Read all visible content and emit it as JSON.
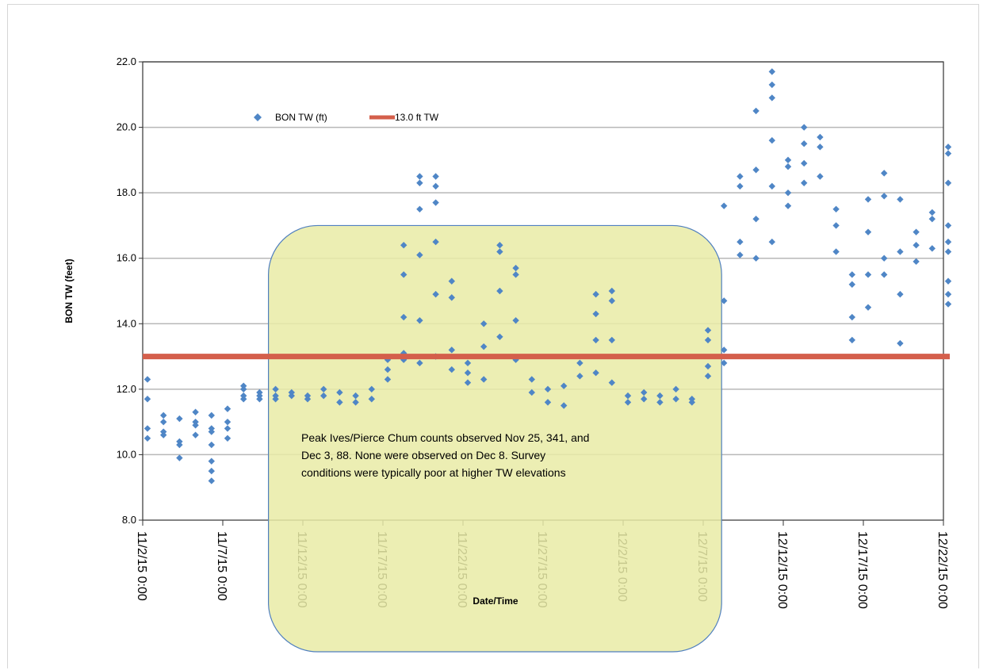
{
  "chart_data": {
    "type": "scatter",
    "title": "",
    "ylabel": "BON TW (feet)",
    "xlabel": "Date/Time",
    "ylim": [
      8,
      22
    ],
    "yticks": [
      8,
      10,
      12,
      14,
      16,
      18,
      20,
      22
    ],
    "ytick_labels": [
      "8.0",
      "10.0",
      "12.0",
      "14.0",
      "16.0",
      "18.0",
      "20.0",
      "22.0"
    ],
    "xlim": [
      "2015-11-02",
      "2015-12-22"
    ],
    "xticks": [
      "2015-11-02",
      "2015-11-07",
      "2015-11-12",
      "2015-11-17",
      "2015-11-22",
      "2015-11-27",
      "2015-12-02",
      "2015-12-07",
      "2015-12-12",
      "2015-12-17",
      "2015-12-22"
    ],
    "xtick_labels": [
      "11/2/15 0:00",
      "11/7/15 0:00",
      "11/12/15 0:00",
      "11/17/15 0:00",
      "11/22/15 0:00",
      "11/27/15 0:00",
      "12/2/15 0:00",
      "12/7/15 0:00",
      "12/12/15 0:00",
      "12/17/15 0:00",
      "12/22/15 0:00"
    ],
    "grid": true,
    "legend_placement": "top-left",
    "series": [
      {
        "name": "BON TW (ft)",
        "type": "scatter",
        "color": "#4f86c6",
        "marker": "diamond",
        "points": [
          [
            "2015-11-02",
            12.3
          ],
          [
            "2015-11-02",
            11.7
          ],
          [
            "2015-11-02",
            10.8
          ],
          [
            "2015-11-02",
            10.5
          ],
          [
            "2015-11-03",
            11.2
          ],
          [
            "2015-11-03",
            10.7
          ],
          [
            "2015-11-03",
            11.0
          ],
          [
            "2015-11-03",
            10.6
          ],
          [
            "2015-11-04",
            11.1
          ],
          [
            "2015-11-04",
            10.3
          ],
          [
            "2015-11-04",
            9.9
          ],
          [
            "2015-11-04",
            10.4
          ],
          [
            "2015-11-05",
            11.0
          ],
          [
            "2015-11-05",
            10.6
          ],
          [
            "2015-11-05",
            11.3
          ],
          [
            "2015-11-05",
            10.9
          ],
          [
            "2015-11-06",
            11.2
          ],
          [
            "2015-11-06",
            10.8
          ],
          [
            "2015-11-06",
            10.3
          ],
          [
            "2015-11-06",
            10.7
          ],
          [
            "2015-11-06",
            9.5
          ],
          [
            "2015-11-06",
            9.2
          ],
          [
            "2015-11-06",
            9.8
          ],
          [
            "2015-11-07",
            10.5
          ],
          [
            "2015-11-07",
            10.8
          ],
          [
            "2015-11-07",
            11.0
          ],
          [
            "2015-11-07",
            11.4
          ],
          [
            "2015-11-08",
            11.7
          ],
          [
            "2015-11-08",
            12.0
          ],
          [
            "2015-11-08",
            11.8
          ],
          [
            "2015-11-08",
            12.1
          ],
          [
            "2015-11-09",
            11.8
          ],
          [
            "2015-11-09",
            11.7
          ],
          [
            "2015-11-09",
            11.9
          ],
          [
            "2015-11-10",
            11.8
          ],
          [
            "2015-11-10",
            11.7
          ],
          [
            "2015-11-10",
            12.0
          ],
          [
            "2015-11-11",
            11.8
          ],
          [
            "2015-11-11",
            11.9
          ],
          [
            "2015-11-12",
            11.8
          ],
          [
            "2015-11-12",
            11.7
          ],
          [
            "2015-11-13",
            12.0
          ],
          [
            "2015-11-13",
            11.8
          ],
          [
            "2015-11-14",
            11.6
          ],
          [
            "2015-11-14",
            11.9
          ],
          [
            "2015-11-15",
            11.6
          ],
          [
            "2015-11-15",
            11.8
          ],
          [
            "2015-11-16",
            11.7
          ],
          [
            "2015-11-16",
            12.0
          ],
          [
            "2015-11-17",
            12.3
          ],
          [
            "2015-11-17",
            12.6
          ],
          [
            "2015-11-17",
            12.9
          ],
          [
            "2015-11-18",
            13.1
          ],
          [
            "2015-11-18",
            15.5
          ],
          [
            "2015-11-18",
            16.4
          ],
          [
            "2015-11-18",
            14.2
          ],
          [
            "2015-11-18",
            12.9
          ],
          [
            "2015-11-19",
            18.5
          ],
          [
            "2015-11-19",
            18.3
          ],
          [
            "2015-11-19",
            17.5
          ],
          [
            "2015-11-19",
            16.1
          ],
          [
            "2015-11-19",
            14.1
          ],
          [
            "2015-11-19",
            12.8
          ],
          [
            "2015-11-20",
            18.5
          ],
          [
            "2015-11-20",
            18.2
          ],
          [
            "2015-11-20",
            17.7
          ],
          [
            "2015-11-20",
            16.5
          ],
          [
            "2015-11-20",
            14.9
          ],
          [
            "2015-11-20",
            13.0
          ],
          [
            "2015-11-21",
            15.3
          ],
          [
            "2015-11-21",
            14.8
          ],
          [
            "2015-11-21",
            13.2
          ],
          [
            "2015-11-21",
            12.6
          ],
          [
            "2015-11-22",
            12.5
          ],
          [
            "2015-11-22",
            12.2
          ],
          [
            "2015-11-22",
            12.8
          ],
          [
            "2015-11-23",
            12.3
          ],
          [
            "2015-11-23",
            13.3
          ],
          [
            "2015-11-23",
            14.0
          ],
          [
            "2015-11-24",
            16.4
          ],
          [
            "2015-11-24",
            16.2
          ],
          [
            "2015-11-24",
            15.0
          ],
          [
            "2015-11-24",
            13.6
          ],
          [
            "2015-11-25",
            15.7
          ],
          [
            "2015-11-25",
            15.5
          ],
          [
            "2015-11-25",
            14.1
          ],
          [
            "2015-11-25",
            12.9
          ],
          [
            "2015-11-26",
            12.3
          ],
          [
            "2015-11-26",
            11.9
          ],
          [
            "2015-11-27",
            11.6
          ],
          [
            "2015-11-27",
            12.0
          ],
          [
            "2015-11-28",
            11.5
          ],
          [
            "2015-11-28",
            12.1
          ],
          [
            "2015-11-29",
            12.4
          ],
          [
            "2015-11-29",
            12.8
          ],
          [
            "2015-11-30",
            14.9
          ],
          [
            "2015-11-30",
            14.3
          ],
          [
            "2015-11-30",
            13.5
          ],
          [
            "2015-11-30",
            12.5
          ],
          [
            "2015-12-01",
            15.0
          ],
          [
            "2015-12-01",
            14.7
          ],
          [
            "2015-12-01",
            13.5
          ],
          [
            "2015-12-01",
            12.2
          ],
          [
            "2015-12-02",
            11.8
          ],
          [
            "2015-12-02",
            11.6
          ],
          [
            "2015-12-03",
            11.7
          ],
          [
            "2015-12-03",
            11.9
          ],
          [
            "2015-12-04",
            11.6
          ],
          [
            "2015-12-04",
            11.8
          ],
          [
            "2015-12-05",
            11.7
          ],
          [
            "2015-12-05",
            12.0
          ],
          [
            "2015-12-06",
            11.7
          ],
          [
            "2015-12-06",
            11.6
          ],
          [
            "2015-12-07",
            12.4
          ],
          [
            "2015-12-07",
            13.5
          ],
          [
            "2015-12-07",
            13.8
          ],
          [
            "2015-12-07",
            12.7
          ],
          [
            "2015-12-08",
            13.2
          ],
          [
            "2015-12-08",
            12.8
          ],
          [
            "2015-12-08",
            14.7
          ],
          [
            "2015-12-08",
            17.6
          ],
          [
            "2015-12-09",
            18.5
          ],
          [
            "2015-12-09",
            18.2
          ],
          [
            "2015-12-09",
            16.5
          ],
          [
            "2015-12-09",
            16.1
          ],
          [
            "2015-12-10",
            18.7
          ],
          [
            "2015-12-10",
            20.5
          ],
          [
            "2015-12-10",
            17.2
          ],
          [
            "2015-12-10",
            16.0
          ],
          [
            "2015-12-11",
            21.7
          ],
          [
            "2015-12-11",
            21.3
          ],
          [
            "2015-12-11",
            20.9
          ],
          [
            "2015-12-11",
            19.6
          ],
          [
            "2015-12-11",
            18.2
          ],
          [
            "2015-12-11",
            16.5
          ],
          [
            "2015-12-12",
            19.0
          ],
          [
            "2015-12-12",
            18.8
          ],
          [
            "2015-12-12",
            18.0
          ],
          [
            "2015-12-12",
            17.6
          ],
          [
            "2015-12-13",
            20.0
          ],
          [
            "2015-12-13",
            19.5
          ],
          [
            "2015-12-13",
            18.9
          ],
          [
            "2015-12-13",
            18.3
          ],
          [
            "2015-12-14",
            19.7
          ],
          [
            "2015-12-14",
            19.4
          ],
          [
            "2015-12-14",
            18.5
          ],
          [
            "2015-12-15",
            17.5
          ],
          [
            "2015-12-15",
            17.0
          ],
          [
            "2015-12-15",
            16.2
          ],
          [
            "2015-12-16",
            15.5
          ],
          [
            "2015-12-16",
            15.2
          ],
          [
            "2015-12-16",
            14.2
          ],
          [
            "2015-12-16",
            13.5
          ],
          [
            "2015-12-17",
            17.8
          ],
          [
            "2015-12-17",
            16.8
          ],
          [
            "2015-12-17",
            15.5
          ],
          [
            "2015-12-17",
            14.5
          ],
          [
            "2015-12-18",
            18.6
          ],
          [
            "2015-12-18",
            17.9
          ],
          [
            "2015-12-18",
            16.0
          ],
          [
            "2015-12-18",
            15.5
          ],
          [
            "2015-12-19",
            16.2
          ],
          [
            "2015-12-19",
            14.9
          ],
          [
            "2015-12-19",
            13.4
          ],
          [
            "2015-12-19",
            17.8
          ],
          [
            "2015-12-20",
            16.8
          ],
          [
            "2015-12-20",
            16.4
          ],
          [
            "2015-12-20",
            15.9
          ],
          [
            "2015-12-21",
            17.4
          ],
          [
            "2015-12-21",
            17.2
          ],
          [
            "2015-12-21",
            16.3
          ],
          [
            "2015-12-22",
            16.5
          ],
          [
            "2015-12-22",
            15.3
          ],
          [
            "2015-12-22",
            14.9
          ],
          [
            "2015-12-22",
            17.0
          ],
          [
            "2015-12-22",
            14.6
          ],
          [
            "2015-12-22",
            16.2
          ],
          [
            "2015-12-22",
            18.3
          ],
          [
            "2015-12-22",
            19.4
          ],
          [
            "2015-12-22",
            19.2
          ]
        ]
      },
      {
        "name": "13.0  ft  TW",
        "type": "line",
        "color": "#d45f4b",
        "value": 13.0
      }
    ],
    "annotation": {
      "lines": [
        "Peak Ives/Pierce Chum counts observed Nov 25, 341, and",
        "Dec 3, 88.  None were observed on Dec 8.  Survey",
        "conditions were typically poor at higher TW elevations"
      ],
      "box_x_range": [
        "2015-11-10",
        "2015-12-08"
      ],
      "box_y_range": [
        17.0,
        8.0
      ],
      "fill": "#e9eba6"
    }
  }
}
